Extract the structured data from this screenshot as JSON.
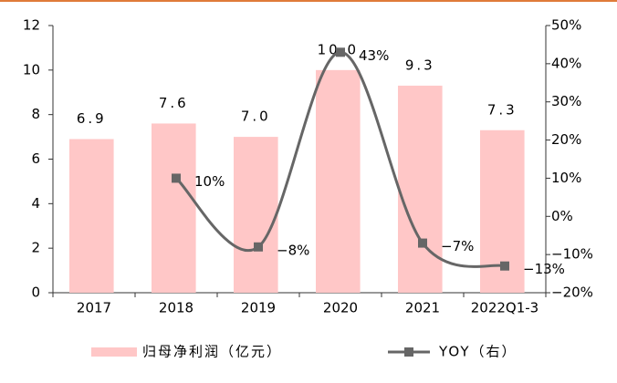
{
  "chart_data": {
    "type": "bar",
    "categories": [
      "2017",
      "2018",
      "2019",
      "2020",
      "2021",
      "2022Q1-3"
    ],
    "series": [
      {
        "name": "归母净利润（亿元）",
        "type": "bar",
        "color": "#ffc7c7",
        "values": [
          6.9,
          7.6,
          7.0,
          10.0,
          9.3,
          7.3
        ],
        "value_labels": [
          "6.9",
          "7.6",
          "7.0",
          "10.0",
          "9.3",
          "7.3"
        ]
      },
      {
        "name": "YOY（右）",
        "type": "line",
        "axis": "y2",
        "color": "#666666",
        "values": [
          null,
          10,
          -8,
          43,
          -7,
          -13
        ],
        "value_labels": [
          null,
          "10%",
          "−8%",
          "43%",
          "−7%",
          "−13%"
        ]
      }
    ],
    "ylim": [
      0,
      12
    ],
    "yticks": [
      0,
      2,
      4,
      6,
      8,
      10,
      12
    ],
    "y2lim": [
      -20,
      50
    ],
    "y2ticks": [
      {
        "value": -20,
        "label": "−20%"
      },
      {
        "value": -10,
        "label": "−10%"
      },
      {
        "value": 0,
        "label": "0%"
      },
      {
        "value": 10,
        "label": "10%"
      },
      {
        "value": 20,
        "label": "20%"
      },
      {
        "value": 30,
        "label": "30%"
      },
      {
        "value": 40,
        "label": "40%"
      },
      {
        "value": 50,
        "label": "50%"
      }
    ],
    "grid": false,
    "legend": "bottom"
  }
}
